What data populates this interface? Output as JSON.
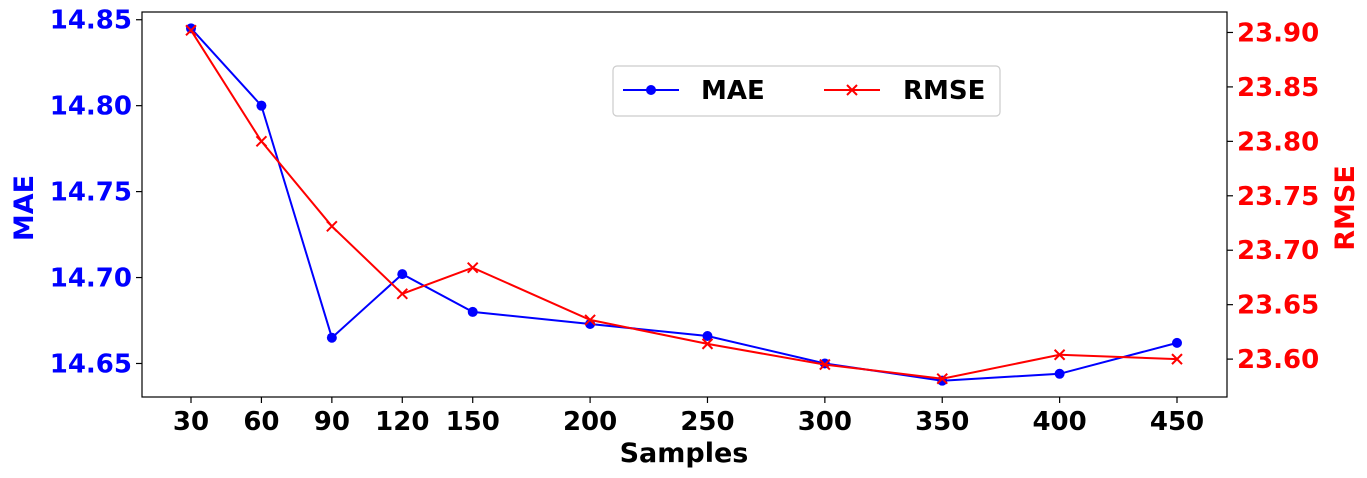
{
  "chart_data": {
    "type": "line",
    "x": [
      30,
      60,
      90,
      120,
      150,
      200,
      250,
      300,
      350,
      400,
      450
    ],
    "categories": [
      "30",
      "60",
      "90",
      "120",
      "150",
      "200",
      "250",
      "300",
      "350",
      "400",
      "450"
    ],
    "xlabel": "Samples",
    "series": [
      {
        "name": "MAE",
        "axis": "left",
        "marker": "circle",
        "color": "#0000ff",
        "values": [
          14.845,
          14.8,
          14.665,
          14.702,
          14.68,
          14.673,
          14.666,
          14.65,
          14.64,
          14.644,
          14.662
        ]
      },
      {
        "name": "RMSE",
        "axis": "right",
        "marker": "x",
        "color": "#ff0000",
        "values": [
          23.902,
          23.8,
          23.722,
          23.66,
          23.684,
          23.636,
          23.614,
          23.595,
          23.582,
          23.604,
          23.6
        ]
      }
    ],
    "y_left": {
      "label": "MAE",
      "color": "#0000ff",
      "ylim": [
        14.6305,
        14.8545
      ],
      "ticks": [
        14.65,
        14.7,
        14.75,
        14.8,
        14.85
      ],
      "tick_labels": [
        "14.65",
        "14.70",
        "14.75",
        "14.80",
        "14.85"
      ]
    },
    "y_right": {
      "label": "RMSE",
      "color": "#ff0000",
      "ylim": [
        23.5652,
        23.9188
      ],
      "ticks": [
        23.6,
        23.65,
        23.7,
        23.75,
        23.8,
        23.85,
        23.9
      ],
      "tick_labels": [
        "23.60",
        "23.65",
        "23.70",
        "23.75",
        "23.80",
        "23.85",
        "23.90"
      ]
    },
    "grid": false,
    "legend": {
      "placement": "top-center",
      "columns": 2
    }
  }
}
